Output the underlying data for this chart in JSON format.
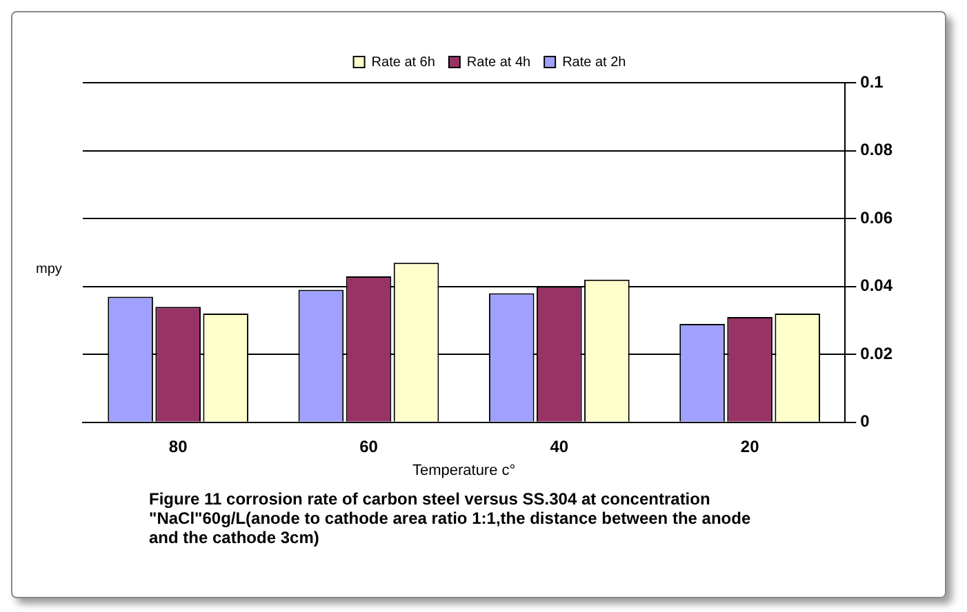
{
  "chart_data": {
    "type": "bar",
    "categories": [
      "80",
      "60",
      "40",
      "20"
    ],
    "series": [
      {
        "name": "Rate at 2h",
        "color": "#a0a0ff",
        "values": [
          0.037,
          0.039,
          0.038,
          0.029
        ]
      },
      {
        "name": "Rate at 4h",
        "color": "#993366",
        "values": [
          0.034,
          0.043,
          0.04,
          0.031
        ]
      },
      {
        "name": "Rate at 6h",
        "color": "#ffffcc",
        "values": [
          0.032,
          0.047,
          0.042,
          0.032
        ]
      }
    ],
    "ylim": [
      0,
      0.1
    ],
    "yticks": [
      0,
      0.02,
      0.04,
      0.06,
      0.08,
      0.1
    ],
    "xlabel": "Temperature c°",
    "ylabel": "mpy",
    "grid": "y",
    "legend": "top",
    "annotations": [
      "Figure 11 corrosion rate of carbon steel versus SS.304 at concentration \"NaCl\"60g/L(anode to cathode area ratio 1:1,the distance between the anode and the cathode 3cm)"
    ]
  }
}
